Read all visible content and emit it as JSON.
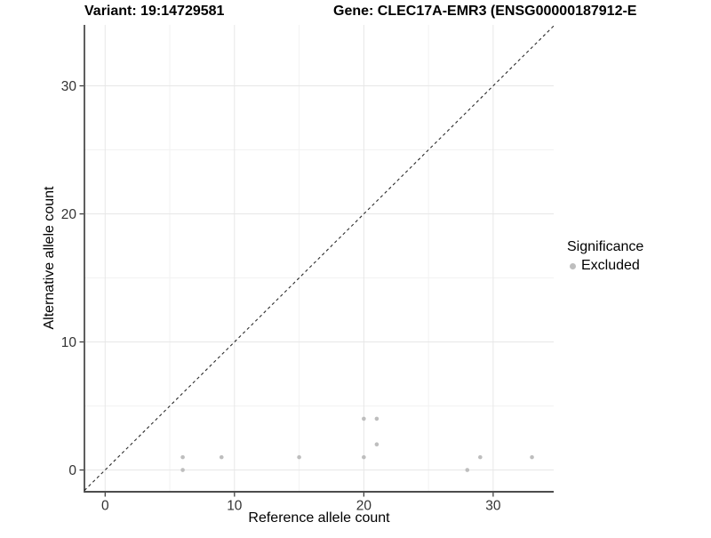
{
  "chart_data": {
    "type": "scatter",
    "titles": {
      "left": "Variant: 19:14729581",
      "right": "Gene: CLEC17A-EMR3 (ENSG00000187912-E"
    },
    "xlabel": "Reference allele count",
    "ylabel": "Alternative allele count",
    "x_ticks": [
      0,
      10,
      20,
      30
    ],
    "y_ticks": [
      0,
      10,
      20,
      30
    ],
    "x_minor_gridlines": [
      5,
      15,
      25
    ],
    "y_minor_gridlines": [
      5,
      15,
      25
    ],
    "xlim": [
      -1.6,
      34.68
    ],
    "ylim": [
      -1.7,
      34.76
    ],
    "grid": "on",
    "identity_line": {
      "style": "dashed",
      "slope": 1,
      "intercept": 0,
      "color": "#2b2b2b"
    },
    "series": [
      {
        "name": "Excluded",
        "color": "#bebebe",
        "points": [
          [
            6,
            0
          ],
          [
            6,
            1
          ],
          [
            9,
            1
          ],
          [
            15,
            1
          ],
          [
            20,
            1
          ],
          [
            20,
            4
          ],
          [
            21,
            2
          ],
          [
            21,
            4
          ],
          [
            28,
            0
          ],
          [
            29,
            1
          ],
          [
            33,
            1
          ]
        ]
      }
    ],
    "legend": {
      "title": "Significance",
      "position": "right",
      "items": [
        {
          "label": "Excluded",
          "color": "#bebebe"
        }
      ]
    }
  },
  "colors": {
    "point": "#bebebe",
    "grid_major": "#e7e7e7",
    "grid_minor": "#f2f2f2",
    "axis_line_left": "#1a1a1a",
    "axis_line_bottom": "#4d4d4d",
    "tick": "#333333",
    "tick_label": "#333333"
  }
}
